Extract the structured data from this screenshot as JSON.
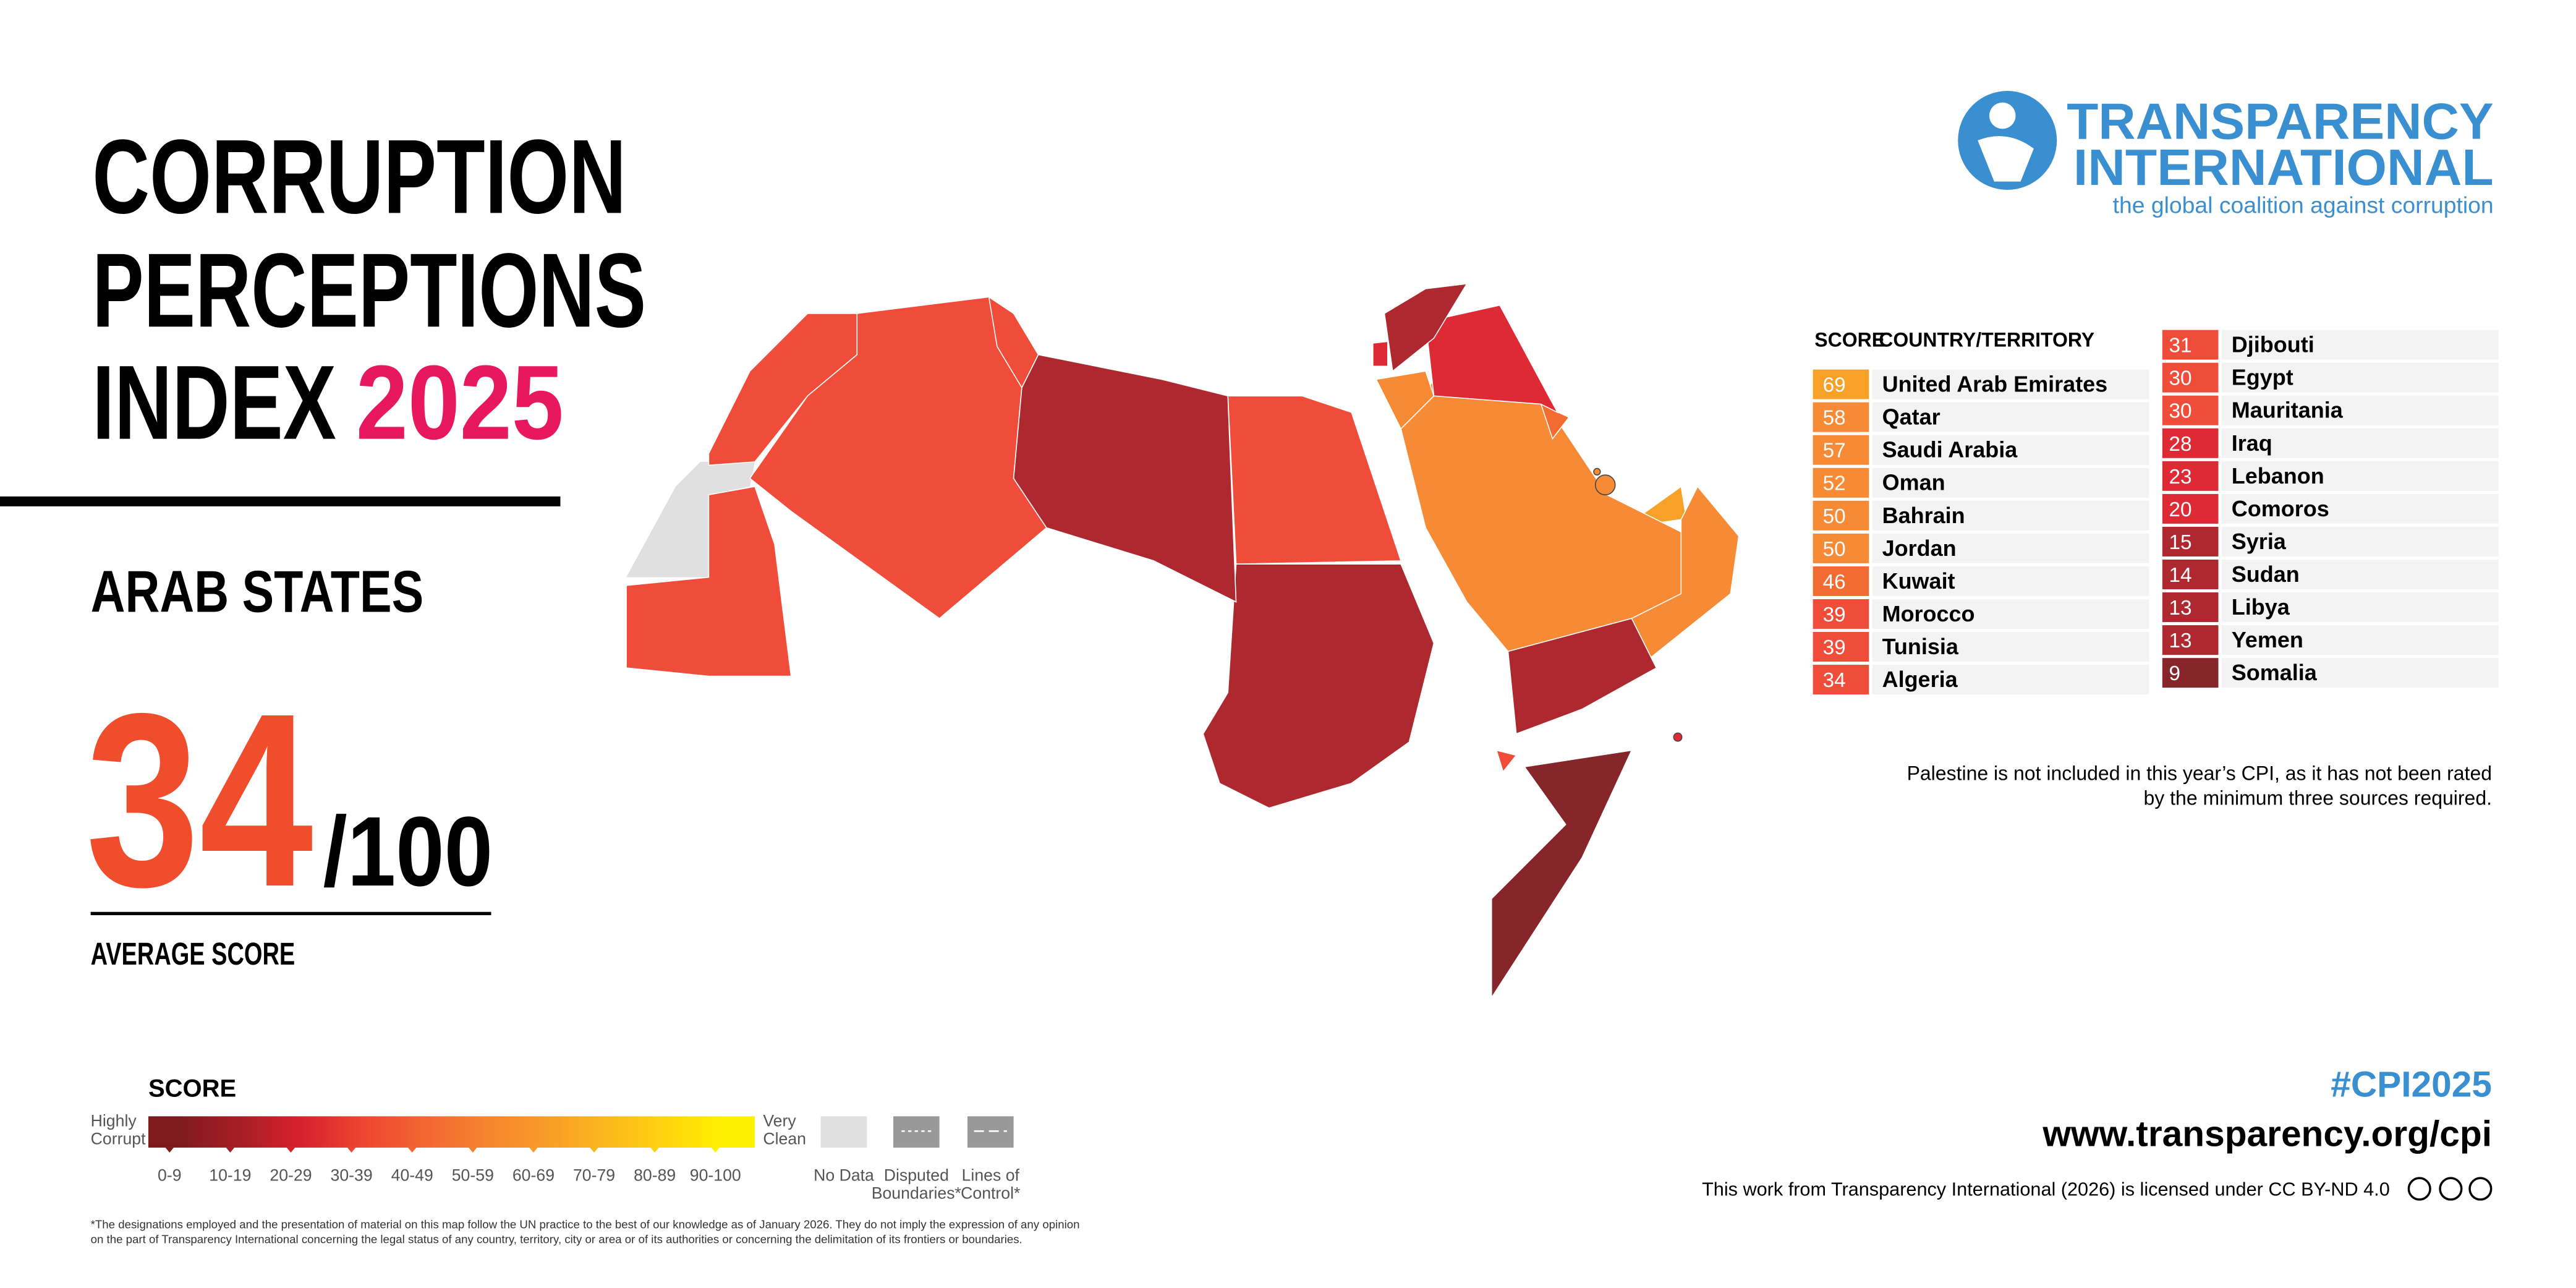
{
  "header": {
    "title_lines": [
      "CORRUPTION",
      "PERCEPTIONS",
      "INDEX"
    ],
    "year": "2025",
    "region": "ARAB STATES",
    "average": "34",
    "out_of": "/100",
    "average_label": "AVERAGE SCORE"
  },
  "logo": {
    "line1": "TRANSPARENCY",
    "line2": "INTERNATIONAL",
    "tagline": "the global coalition against corruption"
  },
  "table": {
    "score_header": "SCORE",
    "country_header": "COUNTRY/TERRITORY",
    "rows": [
      {
        "score": 69,
        "country": "United Arab Emirates",
        "color": "#f7a128"
      },
      {
        "score": 58,
        "country": "Qatar",
        "color": "#f68a35"
      },
      {
        "score": 57,
        "country": "Saudi Arabia",
        "color": "#f68a35"
      },
      {
        "score": 52,
        "country": "Oman",
        "color": "#f68a35"
      },
      {
        "score": 50,
        "country": "Bahrain",
        "color": "#f68a35"
      },
      {
        "score": 50,
        "country": "Jordan",
        "color": "#f68a35"
      },
      {
        "score": 46,
        "country": "Kuwait",
        "color": "#f26b31"
      },
      {
        "score": 39,
        "country": "Morocco",
        "color": "#ef4d39"
      },
      {
        "score": 39,
        "country": "Tunisia",
        "color": "#ef4d39"
      },
      {
        "score": 34,
        "country": "Algeria",
        "color": "#ef4d39"
      },
      {
        "score": 31,
        "country": "Djibouti",
        "color": "#ef4d39"
      },
      {
        "score": 30,
        "country": "Egypt",
        "color": "#ef4d39"
      },
      {
        "score": 30,
        "country": "Mauritania",
        "color": "#ef4d39"
      },
      {
        "score": 28,
        "country": "Iraq",
        "color": "#dd2a34"
      },
      {
        "score": 23,
        "country": "Lebanon",
        "color": "#dd2a34"
      },
      {
        "score": 20,
        "country": "Comoros",
        "color": "#dd2a34"
      },
      {
        "score": 15,
        "country": "Syria",
        "color": "#ae2830"
      },
      {
        "score": 14,
        "country": "Sudan",
        "color": "#ae2830"
      },
      {
        "score": 13,
        "country": "Libya",
        "color": "#ae2830"
      },
      {
        "score": 13,
        "country": "Yemen",
        "color": "#ae2830"
      },
      {
        "score": 9,
        "country": "Somalia",
        "color": "#86262a"
      }
    ]
  },
  "note_lines": [
    "Palestine is not included in this year’s CPI, as it has not been rated",
    "by the minimum three sources required."
  ],
  "legend": {
    "title": "SCORE",
    "low_label": [
      "Highly",
      "Corrupt"
    ],
    "high_label": [
      "Very",
      "Clean"
    ],
    "bins": [
      {
        "label": "0-9",
        "color": "#7e1a1e"
      },
      {
        "label": "10-19",
        "color": "#a61e24"
      },
      {
        "label": "20-29",
        "color": "#d7202d"
      },
      {
        "label": "30-39",
        "color": "#ec4530"
      },
      {
        "label": "40-49",
        "color": "#f26430"
      },
      {
        "label": "50-59",
        "color": "#f5822f"
      },
      {
        "label": "60-69",
        "color": "#f79a28"
      },
      {
        "label": "70-79",
        "color": "#fbb61e"
      },
      {
        "label": "80-89",
        "color": "#fdd30e"
      },
      {
        "label": "90-100",
        "color": "#fff200"
      }
    ],
    "no_data": "No Data",
    "disputed": [
      "Disputed",
      "Boundaries*"
    ],
    "lines_of_control": [
      "Lines of",
      "Control*"
    ]
  },
  "footnote_lines": [
    "*The designations employed and the presentation of material on this map follow the UN practice to the best of our knowledge as of January 2026. They do not imply the expression of any opinion",
    "on the part of Transparency International concerning the legal status of any country, territory, city or area or of its authorities or concerning the delimitation of its frontiers or boundaries."
  ],
  "footer": {
    "hashtag": "#CPI2025",
    "url": "www.transparency.org/cpi",
    "license": "This work from Transparency International (2026) is licensed under CC BY-ND 4.0"
  }
}
